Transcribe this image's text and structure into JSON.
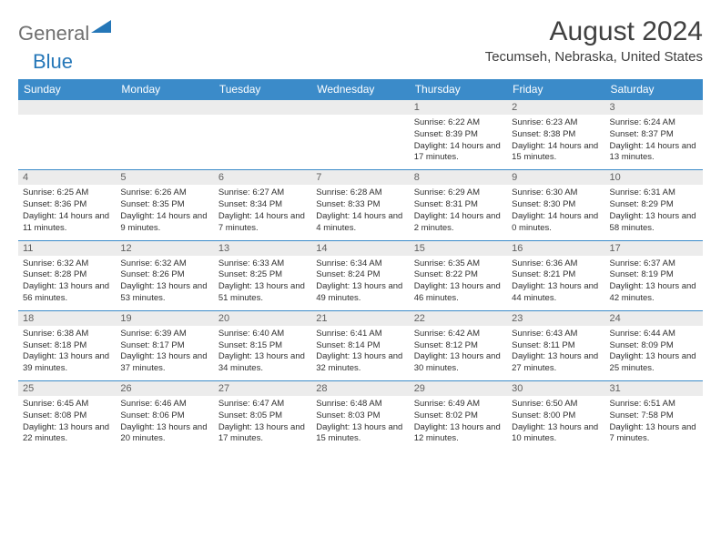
{
  "logo": {
    "part1": "General",
    "part2": "Blue"
  },
  "title": "August 2024",
  "subtitle": "Tecumseh, Nebraska, United States",
  "colors": {
    "header_bg": "#3b8bc9",
    "header_text": "#ffffff",
    "daynum_bg": "#ececec",
    "border": "#3b8bc9",
    "logo_gray": "#707070",
    "logo_blue": "#2577b8"
  },
  "weekdays": [
    "Sunday",
    "Monday",
    "Tuesday",
    "Wednesday",
    "Thursday",
    "Friday",
    "Saturday"
  ],
  "weeks": [
    [
      null,
      null,
      null,
      null,
      {
        "n": "1",
        "sr": "6:22 AM",
        "ss": "8:39 PM",
        "dl": "14 hours and 17 minutes."
      },
      {
        "n": "2",
        "sr": "6:23 AM",
        "ss": "8:38 PM",
        "dl": "14 hours and 15 minutes."
      },
      {
        "n": "3",
        "sr": "6:24 AM",
        "ss": "8:37 PM",
        "dl": "14 hours and 13 minutes."
      }
    ],
    [
      {
        "n": "4",
        "sr": "6:25 AM",
        "ss": "8:36 PM",
        "dl": "14 hours and 11 minutes."
      },
      {
        "n": "5",
        "sr": "6:26 AM",
        "ss": "8:35 PM",
        "dl": "14 hours and 9 minutes."
      },
      {
        "n": "6",
        "sr": "6:27 AM",
        "ss": "8:34 PM",
        "dl": "14 hours and 7 minutes."
      },
      {
        "n": "7",
        "sr": "6:28 AM",
        "ss": "8:33 PM",
        "dl": "14 hours and 4 minutes."
      },
      {
        "n": "8",
        "sr": "6:29 AM",
        "ss": "8:31 PM",
        "dl": "14 hours and 2 minutes."
      },
      {
        "n": "9",
        "sr": "6:30 AM",
        "ss": "8:30 PM",
        "dl": "14 hours and 0 minutes."
      },
      {
        "n": "10",
        "sr": "6:31 AM",
        "ss": "8:29 PM",
        "dl": "13 hours and 58 minutes."
      }
    ],
    [
      {
        "n": "11",
        "sr": "6:32 AM",
        "ss": "8:28 PM",
        "dl": "13 hours and 56 minutes."
      },
      {
        "n": "12",
        "sr": "6:32 AM",
        "ss": "8:26 PM",
        "dl": "13 hours and 53 minutes."
      },
      {
        "n": "13",
        "sr": "6:33 AM",
        "ss": "8:25 PM",
        "dl": "13 hours and 51 minutes."
      },
      {
        "n": "14",
        "sr": "6:34 AM",
        "ss": "8:24 PM",
        "dl": "13 hours and 49 minutes."
      },
      {
        "n": "15",
        "sr": "6:35 AM",
        "ss": "8:22 PM",
        "dl": "13 hours and 46 minutes."
      },
      {
        "n": "16",
        "sr": "6:36 AM",
        "ss": "8:21 PM",
        "dl": "13 hours and 44 minutes."
      },
      {
        "n": "17",
        "sr": "6:37 AM",
        "ss": "8:19 PM",
        "dl": "13 hours and 42 minutes."
      }
    ],
    [
      {
        "n": "18",
        "sr": "6:38 AM",
        "ss": "8:18 PM",
        "dl": "13 hours and 39 minutes."
      },
      {
        "n": "19",
        "sr": "6:39 AM",
        "ss": "8:17 PM",
        "dl": "13 hours and 37 minutes."
      },
      {
        "n": "20",
        "sr": "6:40 AM",
        "ss": "8:15 PM",
        "dl": "13 hours and 34 minutes."
      },
      {
        "n": "21",
        "sr": "6:41 AM",
        "ss": "8:14 PM",
        "dl": "13 hours and 32 minutes."
      },
      {
        "n": "22",
        "sr": "6:42 AM",
        "ss": "8:12 PM",
        "dl": "13 hours and 30 minutes."
      },
      {
        "n": "23",
        "sr": "6:43 AM",
        "ss": "8:11 PM",
        "dl": "13 hours and 27 minutes."
      },
      {
        "n": "24",
        "sr": "6:44 AM",
        "ss": "8:09 PM",
        "dl": "13 hours and 25 minutes."
      }
    ],
    [
      {
        "n": "25",
        "sr": "6:45 AM",
        "ss": "8:08 PM",
        "dl": "13 hours and 22 minutes."
      },
      {
        "n": "26",
        "sr": "6:46 AM",
        "ss": "8:06 PM",
        "dl": "13 hours and 20 minutes."
      },
      {
        "n": "27",
        "sr": "6:47 AM",
        "ss": "8:05 PM",
        "dl": "13 hours and 17 minutes."
      },
      {
        "n": "28",
        "sr": "6:48 AM",
        "ss": "8:03 PM",
        "dl": "13 hours and 15 minutes."
      },
      {
        "n": "29",
        "sr": "6:49 AM",
        "ss": "8:02 PM",
        "dl": "13 hours and 12 minutes."
      },
      {
        "n": "30",
        "sr": "6:50 AM",
        "ss": "8:00 PM",
        "dl": "13 hours and 10 minutes."
      },
      {
        "n": "31",
        "sr": "6:51 AM",
        "ss": "7:58 PM",
        "dl": "13 hours and 7 minutes."
      }
    ]
  ],
  "labels": {
    "sunrise": "Sunrise:",
    "sunset": "Sunset:",
    "daylight": "Daylight:"
  }
}
